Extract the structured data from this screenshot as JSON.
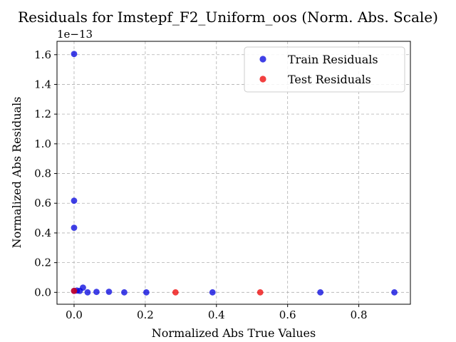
{
  "chart_data": {
    "type": "scatter",
    "title": "Residuals for Imstepf_F2_Uniform_oos (Norm. Abs. Scale)",
    "xlabel": "Normalized Abs True Values",
    "ylabel": "Normalized Abs Residuals",
    "y_offset_label": "1e−13",
    "xlim": [
      -0.048,
      0.945
    ],
    "ylim": [
      -0.08,
      1.69
    ],
    "x_ticks": [
      0.0,
      0.2,
      0.4,
      0.6,
      0.8
    ],
    "x_tick_labels": [
      "0.0",
      "0.2",
      "0.4",
      "0.6",
      "0.8"
    ],
    "y_ticks": [
      0.0,
      0.2,
      0.4,
      0.6,
      0.8,
      1.0,
      1.2,
      1.4,
      1.6
    ],
    "y_tick_labels": [
      "0.0",
      "0.2",
      "0.4",
      "0.6",
      "0.8",
      "1.0",
      "1.2",
      "1.4",
      "1.6"
    ],
    "grid": true,
    "legend_position": "top-right",
    "series": [
      {
        "name": "Train Residuals",
        "color": "#0000dd",
        "points": [
          [
            0.0,
            1.605
          ],
          [
            0.0,
            0.617
          ],
          [
            0.0,
            0.435
          ],
          [
            0.0,
            0.01
          ],
          [
            0.008,
            0.012
          ],
          [
            0.016,
            0.01
          ],
          [
            0.025,
            0.032
          ],
          [
            0.038,
            0.0
          ],
          [
            0.063,
            0.003
          ],
          [
            0.098,
            0.004
          ],
          [
            0.141,
            0.0
          ],
          [
            0.203,
            0.0
          ],
          [
            0.389,
            0.0
          ],
          [
            0.692,
            0.0
          ],
          [
            0.9,
            0.0
          ]
        ]
      },
      {
        "name": "Test Residuals",
        "color": "#ee0000",
        "points": [
          [
            0.0,
            0.01
          ],
          [
            0.285,
            0.0
          ],
          [
            0.523,
            0.0
          ]
        ]
      }
    ]
  }
}
